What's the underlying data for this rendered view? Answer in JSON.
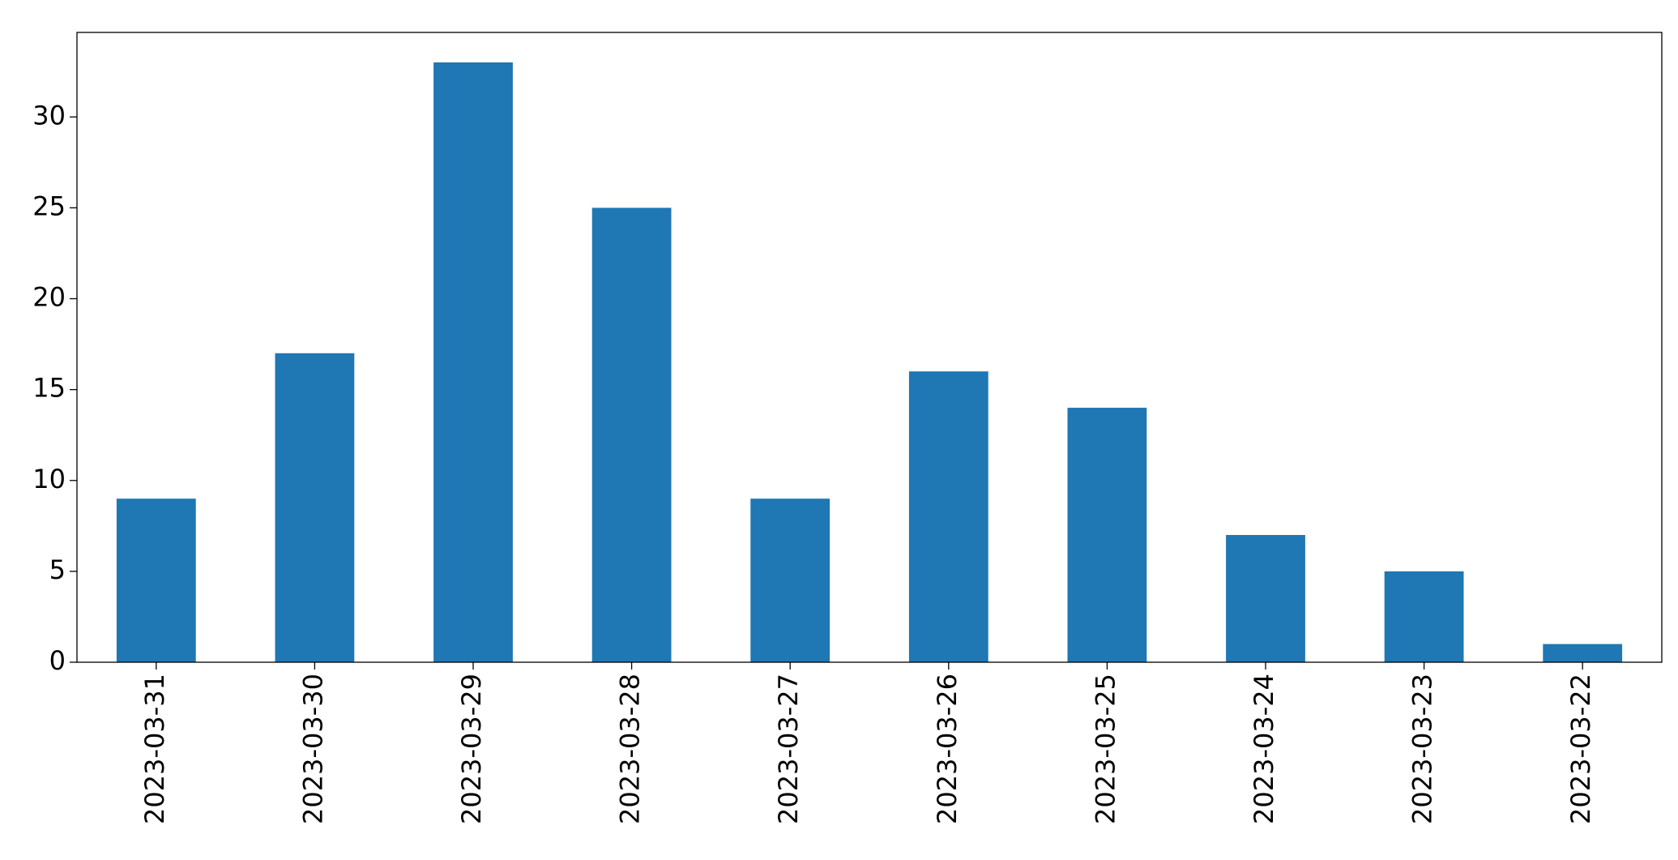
{
  "chart_data": {
    "type": "bar",
    "categories": [
      "2023-03-31",
      "2023-03-30",
      "2023-03-29",
      "2023-03-28",
      "2023-03-27",
      "2023-03-26",
      "2023-03-25",
      "2023-03-24",
      "2023-03-23",
      "2023-03-22"
    ],
    "values": [
      9,
      17,
      33,
      25,
      9,
      16,
      14,
      7,
      5,
      1
    ],
    "color": "#1f77b4",
    "ylim": [
      0,
      34.65
    ],
    "yticks": [
      0,
      5,
      10,
      15,
      20,
      25,
      30
    ],
    "grid": false
  }
}
